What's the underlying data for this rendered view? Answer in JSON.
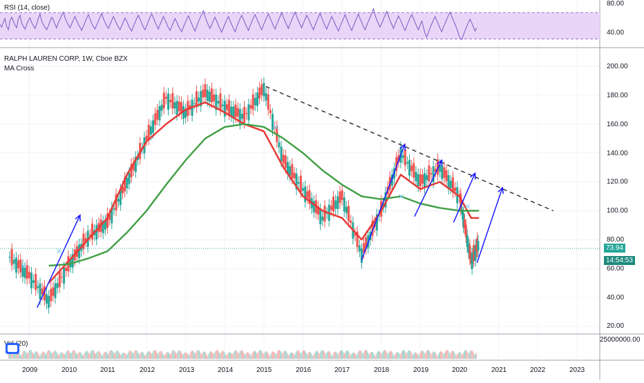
{
  "rsi": {
    "label": "RSI (14, close)",
    "ticks": [
      "80.00",
      "40.00"
    ],
    "levels": [
      70,
      30
    ],
    "range": [
      20,
      85
    ],
    "series": [
      52,
      48,
      55,
      61,
      49,
      44,
      58,
      63,
      57,
      51,
      47,
      60,
      66,
      54,
      49,
      45,
      52,
      58,
      62,
      55,
      50,
      46,
      53,
      61,
      68,
      57,
      52,
      48,
      44,
      50,
      57,
      63,
      59,
      52,
      47,
      55,
      60,
      66,
      71,
      62,
      56,
      51,
      47,
      53,
      59,
      64,
      58,
      52,
      48,
      43,
      49,
      55,
      62,
      67,
      60,
      54,
      49,
      45,
      51,
      57,
      63,
      69,
      61,
      55,
      50,
      46,
      52,
      58,
      64,
      59,
      53,
      48,
      44,
      50,
      56,
      62,
      57,
      51,
      46,
      42,
      49,
      55,
      61,
      66,
      60,
      54,
      48,
      44,
      50,
      57,
      63,
      68,
      62,
      56,
      50,
      45,
      52,
      58,
      64,
      59,
      53,
      47,
      43,
      49,
      55,
      61,
      56,
      50,
      45,
      41,
      48,
      54,
      60,
      65,
      59,
      53,
      47,
      42,
      49,
      56,
      62,
      67,
      73,
      64,
      57,
      51,
      46,
      52,
      58,
      63,
      57,
      51,
      45,
      40,
      47,
      53,
      59,
      64,
      58,
      52,
      46,
      41,
      48,
      55,
      61,
      66,
      60,
      54,
      48,
      43,
      50,
      56,
      62,
      67,
      61,
      55,
      49,
      44,
      51,
      57,
      63,
      68,
      62,
      56,
      50,
      45,
      52,
      58,
      64,
      70,
      63,
      57,
      51,
      46,
      53,
      59,
      65,
      71,
      64,
      58,
      52,
      47,
      54,
      60,
      66,
      61,
      55,
      49,
      44,
      51,
      57,
      63,
      69,
      62,
      56,
      50,
      45,
      52,
      58,
      64,
      59,
      53,
      47,
      42,
      49,
      55,
      61,
      67,
      60,
      54,
      48,
      43,
      50,
      56,
      62,
      68,
      61,
      55,
      49,
      44,
      51,
      57,
      63,
      69,
      76,
      66,
      59,
      53,
      48,
      54,
      60,
      66,
      72,
      65,
      58,
      52,
      46,
      53,
      59,
      65,
      60,
      54,
      48,
      43,
      50,
      56,
      62,
      67,
      61,
      55,
      49,
      44,
      51,
      57,
      48,
      38,
      33,
      40,
      47,
      53,
      59,
      64,
      58,
      52,
      46,
      41,
      48,
      54,
      60,
      66,
      71,
      64,
      58,
      52,
      46,
      38,
      31,
      29,
      36,
      43,
      49,
      55,
      60,
      54,
      48,
      42,
      47
    ]
  },
  "main": {
    "symbol": "RALPH LAUREN CORP, 1W, Cboe BZX",
    "indicator": "MA Cross",
    "price_ticks": [
      "200.00",
      "180.00",
      "160.00",
      "140.00",
      "120.00",
      "100.00",
      "80.00",
      "60.00",
      "40.00",
      "20.00"
    ],
    "price_range": [
      15,
      205
    ],
    "last_price": "73.94",
    "countdown": "14:54:53"
  },
  "volume": {
    "label": "Vol (20)",
    "tick": "25000000.00"
  },
  "time_axis": {
    "labels": [
      "2009",
      "2010",
      "2011",
      "2012",
      "2013",
      "2014",
      "2015",
      "2016",
      "2017",
      "2018",
      "2019",
      "2020",
      "2021",
      "2022",
      "2023"
    ]
  },
  "colors": {
    "up": "#26a69a",
    "down": "#ef5350",
    "fast_ma": "#e53935",
    "slow_ma": "#43a047",
    "rsi_line": "#7e57c2",
    "rsi_band": "#e9d5f7",
    "arrows": "#1a1aff",
    "trend": "#333333",
    "cross": "#7dd3fc",
    "price_badge": "#26a69a",
    "countdown_badge": "#1f8a7e"
  },
  "chart_data": {
    "type": "line",
    "title": "RALPH LAUREN CORP, 1W, Cboe BZX",
    "xlabel": "",
    "ylabel": "",
    "x": [
      2008.5,
      2009.0,
      2009.5,
      2010.0,
      2010.5,
      2011.0,
      2011.5,
      2012.0,
      2012.5,
      2013.0,
      2013.5,
      2014.0,
      2014.5,
      2015.0,
      2015.5,
      2016.0,
      2016.5,
      2017.0,
      2017.5,
      2018.0,
      2018.5,
      2019.0,
      2019.5,
      2020.0,
      2020.3,
      2020.5
    ],
    "series": [
      {
        "values": [
          68,
          55,
          38,
          62,
          82,
          92,
          120,
          150,
          178,
          168,
          182,
          172,
          165,
          185,
          135,
          115,
          95,
          110,
          70,
          100,
          140,
          120,
          130,
          110,
          65,
          78
        ]
      },
      {
        "values": [
          null,
          null,
          50,
          65,
          80,
          95,
          125,
          148,
          160,
          170,
          175,
          168,
          160,
          155,
          130,
          110,
          100,
          95,
          80,
          100,
          125,
          115,
          120,
          110,
          95,
          95
        ]
      },
      {
        "values": [
          null,
          null,
          62,
          63,
          67,
          72,
          85,
          100,
          118,
          135,
          150,
          158,
          160,
          158,
          150,
          140,
          128,
          118,
          110,
          108,
          110,
          105,
          102,
          100,
          100,
          100
        ]
      }
    ],
    "ylim": [
      15,
      205
    ]
  }
}
